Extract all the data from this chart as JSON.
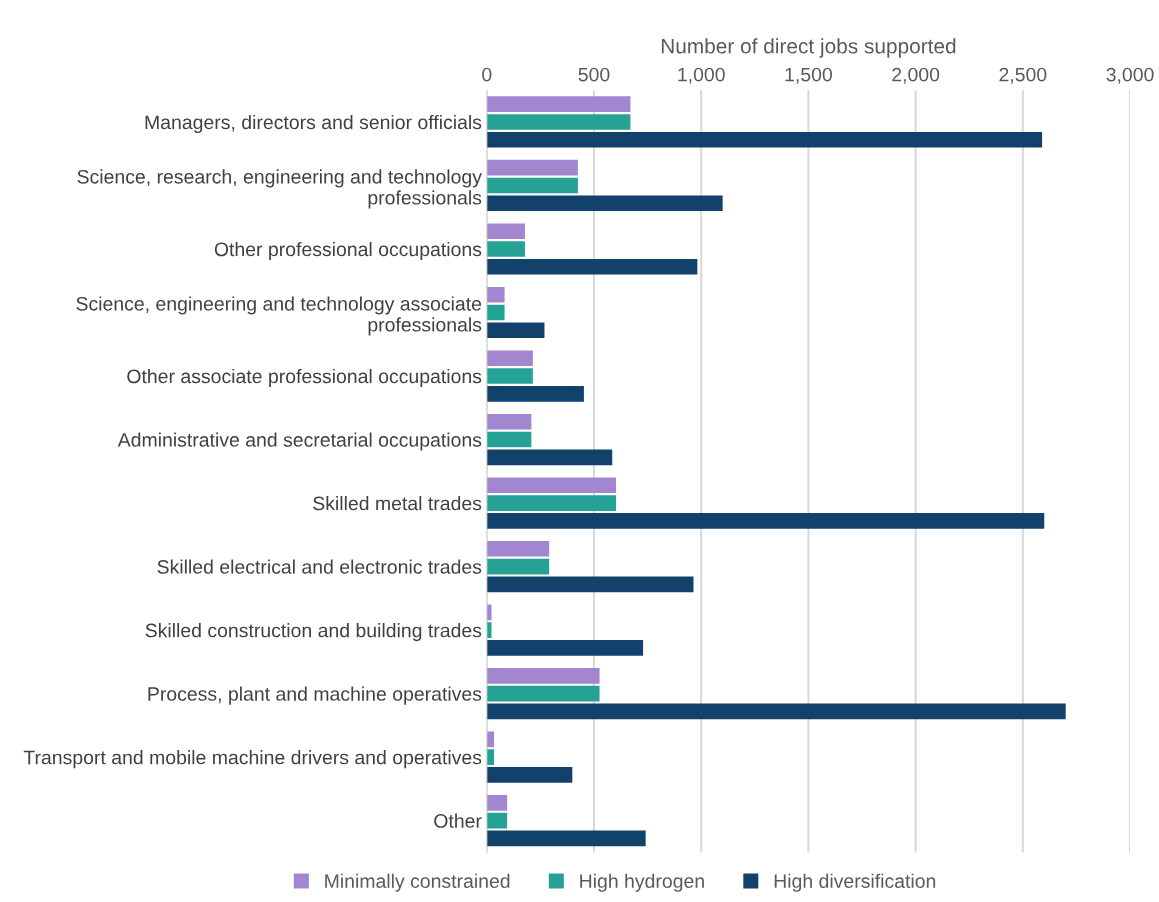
{
  "chart_data": {
    "type": "bar",
    "orientation": "horizontal",
    "xlabel": "Number of direct jobs supported",
    "categories": [
      "Managers, directors and senior officials",
      "Science, research, engineering and technology professionals",
      "Other professional occupations",
      "Science, engineering and technology associate professionals",
      "Other associate professional occupations",
      "Administrative and secretarial occupations",
      "Skilled metal trades",
      "Skilled electrical and electronic trades",
      "Skilled construction and building trades",
      "Process, plant and machine operatives",
      "Transport and mobile machine drivers and operatives",
      "Other"
    ],
    "series": [
      {
        "name": "Minimally constrained",
        "color": "#a286d0",
        "values": [
          670,
          425,
          178,
          83,
          215,
          208,
          603,
          291,
          22,
          526,
          34,
          95
        ]
      },
      {
        "name": "High hydrogen",
        "color": "#26a196",
        "values": [
          670,
          425,
          178,
          83,
          215,
          208,
          603,
          291,
          22,
          526,
          34,
          95
        ]
      },
      {
        "name": "High diversification",
        "color": "#12416b",
        "values": [
          2590,
          1100,
          982,
          269,
          453,
          585,
          2600,
          964,
          729,
          2700,
          399,
          741
        ]
      }
    ],
    "xlim": [
      0,
      3000
    ],
    "xticks": [
      {
        "value": 0,
        "label": "0"
      },
      {
        "value": 500,
        "label": "500"
      },
      {
        "value": 1000,
        "label": "1,000"
      },
      {
        "value": 1500,
        "label": "1,500"
      },
      {
        "value": 2000,
        "label": "2,000"
      },
      {
        "value": 2500,
        "label": "2,500"
      },
      {
        "value": 3000,
        "label": "3,000"
      }
    ],
    "grid": "x",
    "legend": "bottom"
  }
}
